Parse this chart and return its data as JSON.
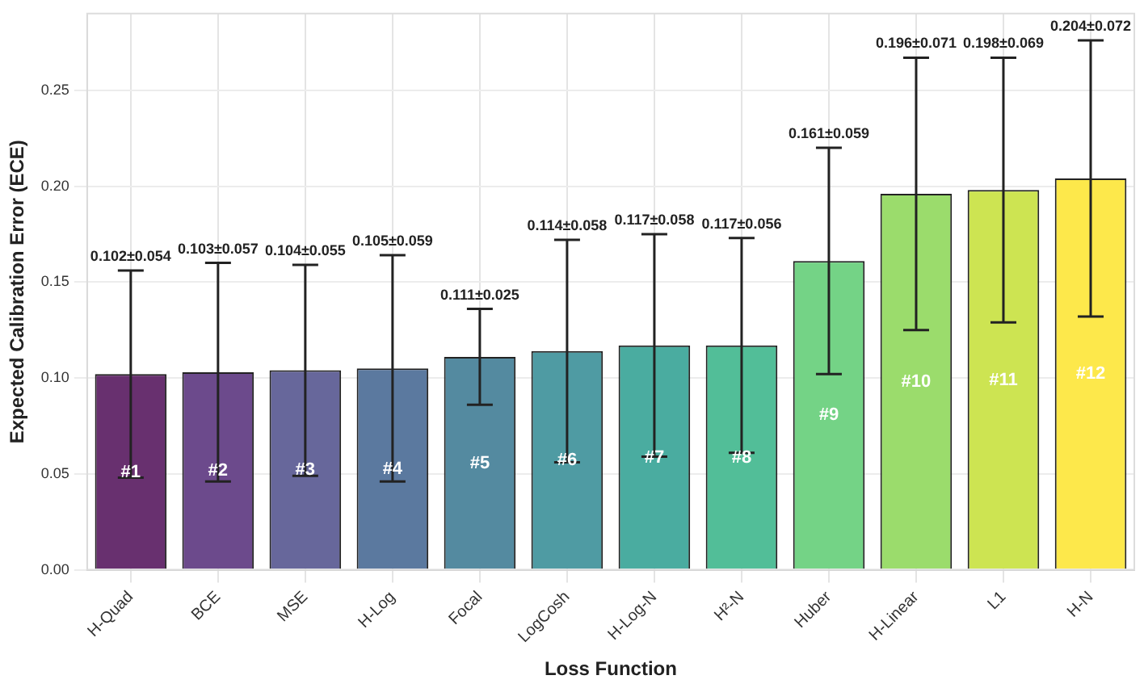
{
  "chart_data": {
    "type": "bar",
    "xlabel": "Loss Function",
    "ylabel": "Expected Calibration Error (ECE)",
    "categories": [
      "H-Quad",
      "BCE",
      "MSE",
      "H-Log",
      "Focal",
      "LogCosh",
      "H-Log-N",
      "H²-N",
      "Huber",
      "H-Linear",
      "L1",
      "H-N"
    ],
    "values": [
      0.102,
      0.103,
      0.104,
      0.105,
      0.111,
      0.114,
      0.117,
      0.117,
      0.161,
      0.196,
      0.198,
      0.204
    ],
    "errors": [
      0.054,
      0.057,
      0.055,
      0.059,
      0.025,
      0.058,
      0.058,
      0.056,
      0.059,
      0.071,
      0.069,
      0.072
    ],
    "colors": [
      "#68306f",
      "#6c4a8c",
      "#67679b",
      "#5b799f",
      "#548aa0",
      "#4f9ba3",
      "#4aaca0",
      "#52be98",
      "#74d386",
      "#9bdc6c",
      "#cde452",
      "#fde84b"
    ],
    "ylim": [
      0,
      0.29
    ],
    "yticks": [
      {
        "value": 0,
        "label": "0.00"
      },
      {
        "value": 0.05,
        "label": "0.05"
      },
      {
        "value": 0.1,
        "label": "0.10"
      },
      {
        "value": 0.15,
        "label": "0.15"
      },
      {
        "value": 0.2,
        "label": "0.20"
      },
      {
        "value": 0.25,
        "label": "0.25"
      }
    ],
    "annotations": [
      "#1",
      "#2",
      "#3",
      "#4",
      "#5",
      "#6",
      "#7",
      "#8",
      "#9",
      "#10",
      "#11",
      "#12",
      {
        "text": "0.102±0.054",
        "x": "H-Quad",
        "y": 0.156
      },
      {
        "text": "0.103±0.057",
        "x": "BCE",
        "y": 0.16
      },
      {
        "text": "0.104±0.055",
        "x": "MSE",
        "y": 0.159
      },
      {
        "text": "0.105±0.059",
        "x": "H-Log",
        "y": 0.164
      },
      {
        "text": "0.111±0.025",
        "x": "Focal",
        "y": 0.136
      },
      {
        "text": "0.114±0.058",
        "x": "LogCosh",
        "y": 0.172
      },
      {
        "text": "0.117±0.058",
        "x": "H-Log-N",
        "y": 0.175
      },
      {
        "text": "0.117±0.056",
        "x": "H²-N",
        "y": 0.173
      },
      {
        "text": "0.161±0.059",
        "x": "Huber",
        "y": 0.22
      },
      {
        "text": "0.196±0.071",
        "x": "H-Linear",
        "y": 0.267
      },
      {
        "text": "0.198±0.069",
        "x": "L1",
        "y": 0.267
      },
      {
        "text": "0.204±0.072",
        "x": "H-N",
        "y": 0.276
      }
    ],
    "grid": true,
    "legend": false
  }
}
